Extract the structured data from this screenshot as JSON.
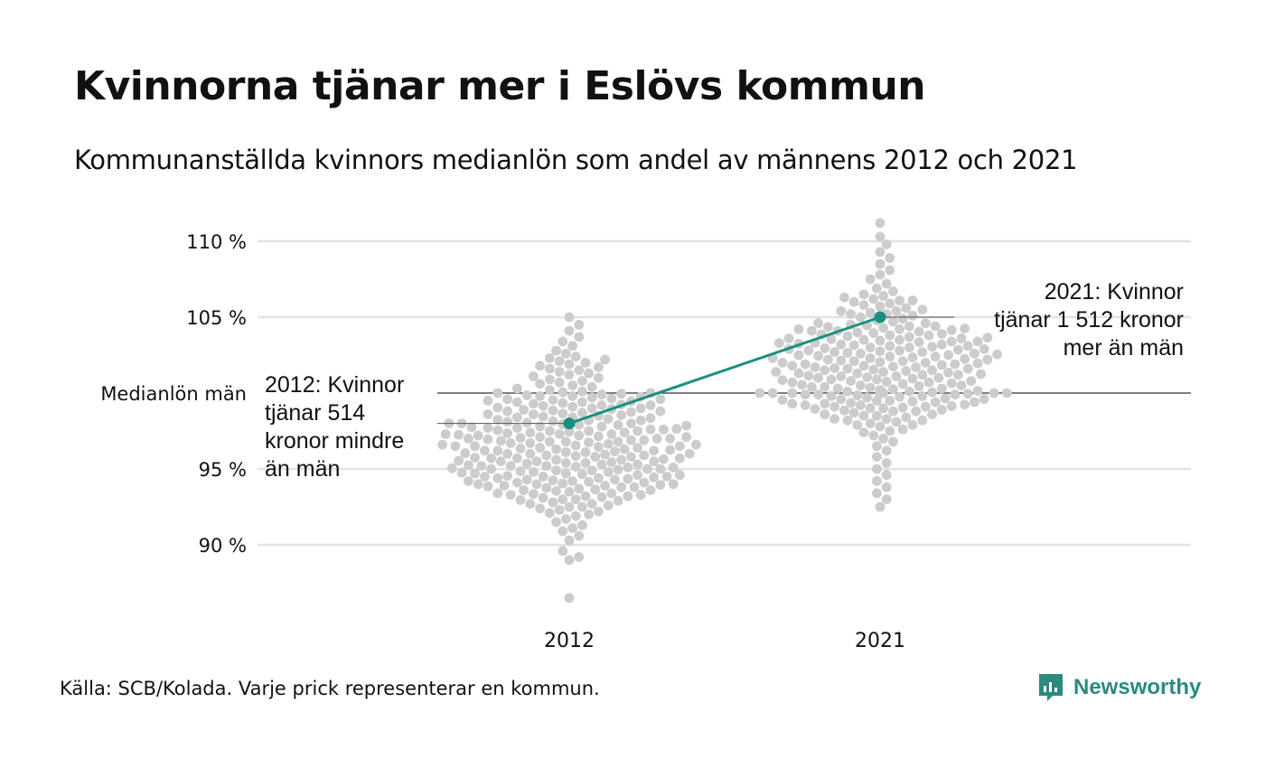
{
  "title": "Kvinnorna tjänar mer i Eslövs kommun",
  "subtitle": "Kommunanställda kvinnors medianlön som andel av männens 2012 och 2021",
  "footer": "Källa: SCB/Kolada. Varje prick representerar en kommun.",
  "brand": {
    "name": "Newsworthy",
    "icon": "bar-chart-icon"
  },
  "colors": {
    "accent": "#1a9080",
    "dots": "#cccccc",
    "grid": "#e3e3e3",
    "reference": "#333333"
  },
  "chart_data": {
    "type": "scatter",
    "subtype": "beeswarm",
    "categories": [
      "2012",
      "2021"
    ],
    "y_ticks": [
      {
        "value": 90,
        "label": "90 %"
      },
      {
        "value": 95,
        "label": "95 %"
      },
      {
        "value": 100,
        "label": "Medianlön män"
      },
      {
        "value": 105,
        "label": "105 %"
      },
      {
        "value": 110,
        "label": "110 %"
      }
    ],
    "ylim": [
      86,
      112
    ],
    "reference_line": {
      "value": 100,
      "label": "Medianlön män"
    },
    "highlight": {
      "name": "Eslövs kommun",
      "values": [
        {
          "x": "2012",
          "y": 98.0
        },
        {
          "x": "2021",
          "y": 105.0
        }
      ]
    },
    "annotations": [
      {
        "x": "2012",
        "lines": [
          "2012: Kvinnor",
          "tjänar 514",
          "kronor mindre",
          "än män"
        ]
      },
      {
        "x": "2021",
        "lines": [
          "2021: Kvinnor",
          "tjänar 1 512 kronor",
          "mer än män"
        ]
      }
    ],
    "distribution": [
      {
        "x": "2012",
        "y": [
          86.5,
          89.0,
          89.2,
          89.6,
          90.3,
          90.6,
          90.9,
          91.1,
          91.3,
          91.5,
          91.7,
          91.9,
          92.0,
          92.1,
          92.2,
          92.3,
          92.4,
          92.5,
          92.6,
          92.7,
          92.8,
          92.9,
          92.95,
          93.0,
          93.1,
          93.15,
          93.2,
          93.3,
          93.35,
          93.4,
          93.5,
          93.55,
          93.6,
          93.65,
          93.7,
          93.75,
          93.8,
          93.85,
          93.9,
          93.95,
          94.0,
          94.05,
          94.1,
          94.15,
          94.2,
          94.25,
          94.3,
          94.35,
          94.4,
          94.45,
          94.5,
          94.55,
          94.6,
          94.65,
          94.7,
          94.75,
          94.8,
          94.85,
          94.9,
          94.95,
          95.0,
          95.05,
          95.1,
          95.15,
          95.2,
          95.25,
          95.3,
          95.35,
          95.4,
          95.45,
          95.5,
          95.55,
          95.6,
          95.65,
          95.7,
          95.75,
          95.8,
          95.85,
          95.9,
          95.95,
          96.0,
          96.05,
          96.1,
          96.15,
          96.2,
          96.25,
          96.3,
          96.35,
          96.4,
          96.45,
          96.5,
          96.55,
          96.6,
          96.65,
          96.7,
          96.75,
          96.8,
          96.85,
          96.9,
          96.95,
          97.0,
          97.05,
          97.1,
          97.15,
          97.2,
          97.25,
          97.3,
          97.35,
          97.4,
          97.45,
          97.5,
          97.55,
          97.6,
          97.65,
          97.7,
          97.75,
          97.8,
          97.85,
          97.9,
          97.95,
          98.0,
          98.05,
          98.1,
          98.15,
          98.2,
          98.25,
          98.3,
          98.35,
          98.4,
          98.45,
          98.5,
          98.55,
          98.6,
          98.65,
          98.7,
          98.75,
          98.8,
          98.85,
          98.9,
          98.95,
          99.0,
          99.05,
          99.1,
          99.15,
          99.2,
          99.25,
          99.3,
          99.35,
          99.4,
          99.45,
          99.5,
          99.55,
          99.6,
          99.65,
          99.7,
          99.75,
          99.8,
          99.85,
          99.9,
          99.95,
          100.0,
          100.05,
          100.1,
          100.2,
          100.3,
          100.4,
          100.5,
          100.6,
          100.7,
          100.8,
          100.9,
          101.0,
          101.1,
          101.2,
          101.3,
          101.4,
          101.5,
          101.6,
          101.7,
          101.8,
          101.9,
          102.0,
          102.1,
          102.2,
          102.3,
          102.4,
          102.6,
          102.8,
          103.1,
          103.4,
          103.7,
          104.1,
          104.5,
          105.0,
          93.0,
          93.2,
          93.4,
          93.6,
          93.8,
          94.0,
          94.2,
          94.4,
          94.6,
          94.8,
          95.0,
          95.2,
          95.4,
          95.6,
          95.8,
          96.0,
          96.2,
          96.4,
          96.6,
          96.8,
          97.0,
          97.2,
          97.4,
          97.6,
          97.8,
          98.0,
          98.2,
          98.4,
          98.6,
          98.8,
          99.0,
          99.2,
          99.4,
          99.6,
          99.8,
          100.0,
          94.1,
          94.3,
          94.5,
          94.7,
          94.9,
          95.1,
          95.3,
          95.5,
          95.7,
          95.9,
          96.1,
          96.3,
          96.5,
          96.7,
          96.9,
          97.1,
          97.3,
          97.5,
          97.7,
          97.9,
          95.0,
          95.5,
          96.0,
          96.5,
          97.0,
          97.5,
          98.0,
          94.0,
          94.5,
          95.2,
          95.7,
          96.2,
          96.8,
          97.3,
          92.5,
          92.7,
          93.3,
          93.9
        ]
      },
      {
        "x": "2021",
        "y": [
          92.5,
          93.0,
          93.4,
          93.8,
          94.2,
          94.6,
          95.0,
          95.4,
          95.8,
          96.2,
          96.5,
          96.8,
          97.0,
          97.2,
          97.4,
          97.6,
          97.8,
          97.9,
          98.0,
          98.1,
          98.2,
          98.3,
          98.4,
          98.5,
          98.6,
          98.7,
          98.8,
          98.85,
          98.9,
          98.95,
          99.0,
          99.05,
          99.1,
          99.15,
          99.2,
          99.25,
          99.3,
          99.35,
          99.4,
          99.45,
          99.5,
          99.55,
          99.6,
          99.65,
          99.7,
          99.75,
          99.8,
          99.85,
          99.9,
          99.95,
          100.0,
          100.05,
          100.1,
          100.15,
          100.2,
          100.25,
          100.3,
          100.35,
          100.4,
          100.45,
          100.5,
          100.55,
          100.6,
          100.65,
          100.7,
          100.75,
          100.8,
          100.85,
          100.9,
          100.95,
          101.0,
          101.05,
          101.1,
          101.15,
          101.2,
          101.25,
          101.3,
          101.35,
          101.4,
          101.45,
          101.5,
          101.55,
          101.6,
          101.65,
          101.7,
          101.75,
          101.8,
          101.85,
          101.9,
          101.95,
          102.0,
          102.05,
          102.1,
          102.15,
          102.2,
          102.25,
          102.3,
          102.35,
          102.4,
          102.45,
          102.5,
          102.55,
          102.6,
          102.65,
          102.7,
          102.75,
          102.8,
          102.85,
          102.9,
          102.95,
          103.0,
          103.05,
          103.1,
          103.15,
          103.2,
          103.25,
          103.3,
          103.35,
          103.4,
          103.45,
          103.5,
          103.55,
          103.6,
          103.65,
          103.7,
          103.75,
          103.8,
          103.85,
          103.9,
          103.95,
          104.0,
          104.05,
          104.1,
          104.15,
          104.2,
          104.25,
          104.3,
          104.35,
          104.4,
          104.45,
          104.5,
          104.6,
          104.7,
          104.8,
          104.9,
          105.0,
          105.1,
          105.2,
          105.3,
          105.4,
          105.5,
          105.6,
          105.7,
          105.8,
          105.9,
          106.0,
          106.1,
          106.2,
          106.3,
          106.5,
          106.7,
          106.9,
          107.2,
          107.5,
          107.8,
          108.1,
          108.5,
          108.9,
          109.3,
          109.8,
          110.3,
          111.2,
          100.0,
          100.0,
          100.0,
          100.0,
          100.0,
          100.0,
          100.0,
          100.0,
          100.0,
          100.0,
          99.0,
          99.3,
          99.6,
          99.9,
          100.2,
          100.5,
          100.8,
          101.1,
          101.4,
          101.7,
          102.0,
          102.3,
          102.6,
          102.9,
          103.2,
          103.5,
          103.8,
          104.1,
          104.4,
          98.5,
          98.8,
          99.2,
          99.5,
          99.8,
          100.1,
          100.4,
          100.7,
          101.0,
          101.3,
          101.6,
          101.9,
          102.2,
          102.5,
          102.8,
          103.1,
          103.4,
          98.2,
          98.6,
          99.4,
          99.9,
          100.3,
          100.9,
          101.5,
          102.1,
          102.7,
          103.3,
          104.2,
          105.2,
          106.1,
          97.5,
          97.9,
          98.3,
          99.1,
          101.2,
          101.8,
          102.4,
          103.0,
          103.6,
          104.6,
          105.4,
          106.4
        ]
      }
    ]
  }
}
